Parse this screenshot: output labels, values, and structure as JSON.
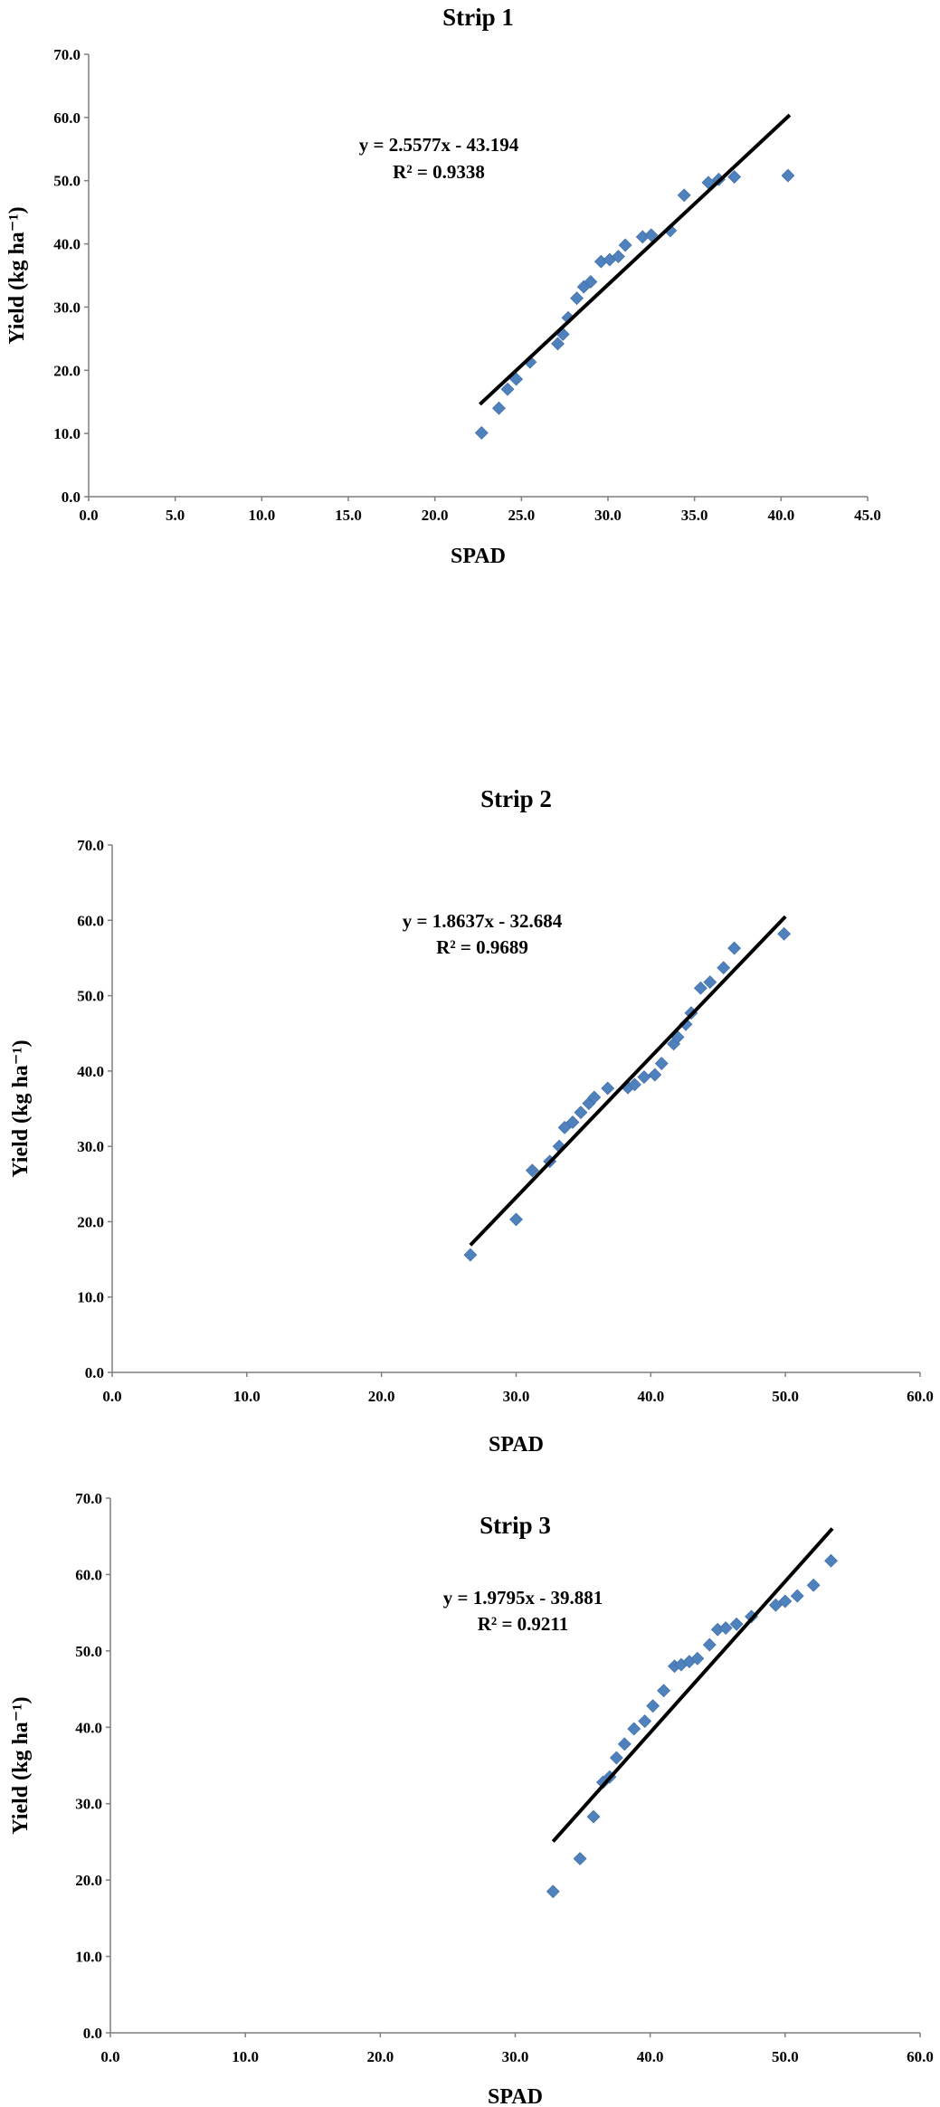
{
  "chart_data": [
    {
      "type": "scatter",
      "title": "Strip 1",
      "xlabel": "SPAD",
      "ylabel": "Yield (kg ha⁻¹)",
      "xlim": [
        0,
        45
      ],
      "ylim": [
        0,
        70
      ],
      "xticks": [
        "0.0",
        "5.0",
        "10.0",
        "15.0",
        "20.0",
        "25.0",
        "30.0",
        "35.0",
        "40.0",
        "45.0"
      ],
      "yticks": [
        "0.0",
        "10.0",
        "20.0",
        "30.0",
        "40.0",
        "50.0",
        "60.0",
        "70.0"
      ],
      "grid": false,
      "legend": "none",
      "marker_color": "#4f81bd",
      "trendline": {
        "slope": 2.5577,
        "intercept": -43.194,
        "x_range": [
          22.6,
          40.5
        ]
      },
      "equation": "y = 2.5577x - 43.194",
      "r2_label": "R² = 0.9338",
      "series": [
        {
          "points": [
            [
              22.7,
              10.1
            ],
            [
              23.7,
              14.0
            ],
            [
              24.2,
              17.0
            ],
            [
              24.7,
              18.6
            ],
            [
              25.5,
              21.3
            ],
            [
              27.1,
              24.2
            ],
            [
              27.4,
              25.7
            ],
            [
              27.7,
              28.3
            ],
            [
              28.2,
              31.4
            ],
            [
              28.6,
              33.2
            ],
            [
              29.0,
              34.0
            ],
            [
              29.6,
              37.2
            ],
            [
              30.1,
              37.5
            ],
            [
              30.6,
              38.0
            ],
            [
              31.0,
              39.8
            ],
            [
              32.0,
              41.1
            ],
            [
              32.5,
              41.4
            ],
            [
              33.6,
              42.1
            ],
            [
              34.4,
              47.7
            ],
            [
              35.8,
              49.7
            ],
            [
              36.4,
              50.2
            ],
            [
              37.3,
              50.6
            ],
            [
              40.4,
              50.8
            ]
          ]
        }
      ]
    },
    {
      "type": "scatter",
      "title": "Strip 2",
      "xlabel": "SPAD",
      "ylabel": "Yield (kg ha⁻¹)",
      "xlim": [
        0,
        60
      ],
      "ylim": [
        0,
        70
      ],
      "xticks": [
        "0.0",
        "10.0",
        "20.0",
        "30.0",
        "40.0",
        "50.0",
        "60.0"
      ],
      "yticks": [
        "0.0",
        "10.0",
        "20.0",
        "30.0",
        "40.0",
        "50.0",
        "60.0",
        "70.0"
      ],
      "grid": false,
      "legend": "none",
      "marker_color": "#4f81bd",
      "trendline": {
        "slope": 1.8637,
        "intercept": -32.684,
        "x_range": [
          26.6,
          50.0
        ]
      },
      "equation": "y = 1.8637x - 32.684",
      "r2_label": "R² = 0.9689",
      "series": [
        {
          "points": [
            [
              26.6,
              15.6
            ],
            [
              30.0,
              20.3
            ],
            [
              31.2,
              26.8
            ],
            [
              32.5,
              28.0
            ],
            [
              33.2,
              30.0
            ],
            [
              33.6,
              32.5
            ],
            [
              34.2,
              33.2
            ],
            [
              34.8,
              34.5
            ],
            [
              35.4,
              35.7
            ],
            [
              35.8,
              36.5
            ],
            [
              36.8,
              37.7
            ],
            [
              38.3,
              37.8
            ],
            [
              38.8,
              38.2
            ],
            [
              39.5,
              39.2
            ],
            [
              40.3,
              39.5
            ],
            [
              40.8,
              41.0
            ],
            [
              41.7,
              43.6
            ],
            [
              42.0,
              44.5
            ],
            [
              42.6,
              46.2
            ],
            [
              43.0,
              47.7
            ],
            [
              43.7,
              51.0
            ],
            [
              44.4,
              51.8
            ],
            [
              45.4,
              53.7
            ],
            [
              46.2,
              56.3
            ],
            [
              49.9,
              58.2
            ]
          ]
        }
      ]
    },
    {
      "type": "scatter",
      "title": "Strip 3",
      "xlabel": "SPAD",
      "ylabel": "Yield (kg ha⁻¹)",
      "xlim": [
        0,
        60
      ],
      "ylim": [
        0,
        70
      ],
      "xticks": [
        "0.0",
        "10.0",
        "20.0",
        "30.0",
        "40.0",
        "50.0",
        "60.0"
      ],
      "yticks": [
        "0.0",
        "10.0",
        "20.0",
        "30.0",
        "40.0",
        "50.0",
        "60.0",
        "70.0"
      ],
      "grid": false,
      "legend": "none",
      "marker_color": "#4f81bd",
      "trendline": {
        "slope": 1.9795,
        "intercept": -39.881,
        "x_range": [
          32.8,
          53.5
        ]
      },
      "equation": "y = 1.9795x - 39.881",
      "r2_label": "R² = 0.9211",
      "series": [
        {
          "points": [
            [
              32.8,
              18.5
            ],
            [
              34.8,
              22.8
            ],
            [
              35.8,
              28.3
            ],
            [
              36.5,
              32.8
            ],
            [
              37.0,
              33.5
            ],
            [
              37.5,
              36.0
            ],
            [
              38.1,
              37.8
            ],
            [
              38.8,
              39.8
            ],
            [
              39.6,
              40.8
            ],
            [
              40.2,
              42.8
            ],
            [
              41.0,
              44.8
            ],
            [
              41.8,
              48.0
            ],
            [
              42.3,
              48.2
            ],
            [
              42.9,
              48.6
            ],
            [
              43.5,
              49.0
            ],
            [
              44.4,
              50.8
            ],
            [
              45.0,
              52.8
            ],
            [
              45.6,
              53.0
            ],
            [
              46.4,
              53.5
            ],
            [
              47.5,
              54.5
            ],
            [
              49.3,
              56.0
            ],
            [
              50.0,
              56.5
            ],
            [
              50.9,
              57.2
            ],
            [
              52.1,
              58.6
            ],
            [
              53.4,
              61.8
            ]
          ]
        }
      ]
    }
  ]
}
